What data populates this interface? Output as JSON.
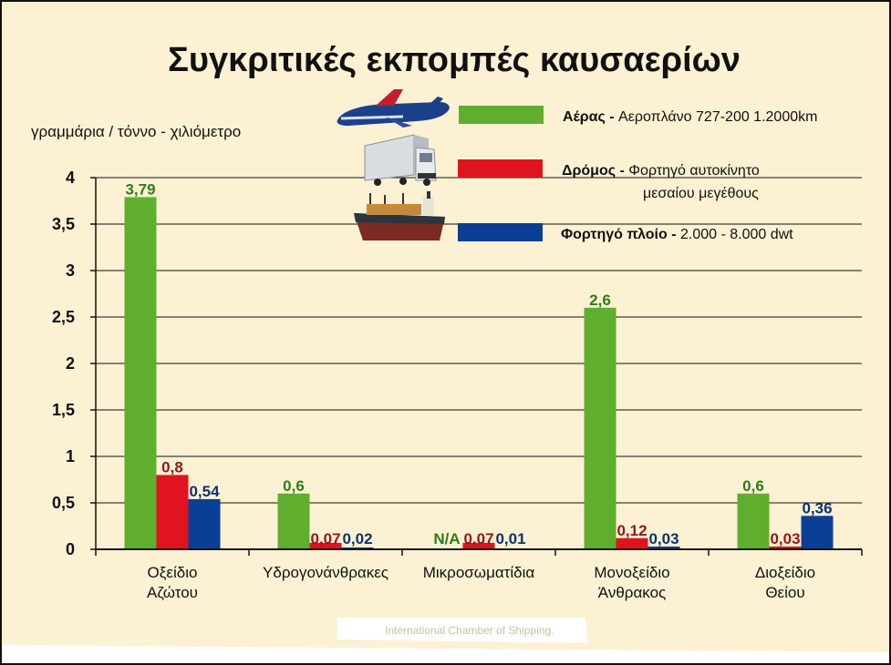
{
  "chart_data": {
    "type": "bar",
    "title": "Συγκριτικές εκπομπές καυσαερίων",
    "ylabel": "γραμμάρια / τόννο - χιλιόμετρο",
    "ylim": [
      0,
      4
    ],
    "yticks": [
      "0",
      "0,5",
      "1",
      "1,5",
      "2",
      "2,5",
      "3",
      "3,5",
      "4"
    ],
    "grid": true,
    "legend_position": "top-right",
    "categories": [
      [
        "Οξείδιο",
        "Αζώτου"
      ],
      [
        "Υδρογονάνθρακες"
      ],
      [
        "Μικροσωματίδια"
      ],
      [
        "Μονοξείδιο",
        "Άνθρακος"
      ],
      [
        "Διοξείδιο",
        "Θείου"
      ]
    ],
    "series": [
      {
        "name": "Αέρας",
        "legend_bold": "Αέρας",
        "legend_rest": "Αεροπλάνο 727-200 1.2000km",
        "color": "#5fae2e",
        "label_color": "#2e7d14",
        "values": [
          3.79,
          0.6,
          null,
          2.6,
          0.6
        ],
        "labels": [
          "3,79",
          "0,6",
          "N/A",
          "2,6",
          "0,6"
        ]
      },
      {
        "name": "Δρόμος",
        "legend_bold": "Δρόμος",
        "legend_rest": [
          "Φορτηγό αυτοκίνητο",
          "μεσαίου μεγέθους"
        ],
        "color": "#e0141e",
        "label_color": "#9a1420",
        "values": [
          0.8,
          0.07,
          0.07,
          0.12,
          0.03
        ],
        "labels": [
          "0,8",
          "0,07",
          "0,07",
          "0,12",
          "0,03"
        ]
      },
      {
        "name": "Φορτηγό πλοίο",
        "legend_bold": "Φορτηγό πλοίο",
        "legend_rest": "2.000 - 8.000 dwt",
        "color": "#0b3f95",
        "label_color": "#0b3174",
        "values": [
          0.54,
          0.02,
          0.01,
          0.03,
          0.36
        ],
        "labels": [
          "0,54",
          "0,02",
          "0,01",
          "0,03",
          "0,36"
        ]
      }
    ],
    "source": "International Chamber of Shipping."
  },
  "icons": [
    "airplane-icon",
    "truck-icon",
    "cargo-ship-icon"
  ]
}
